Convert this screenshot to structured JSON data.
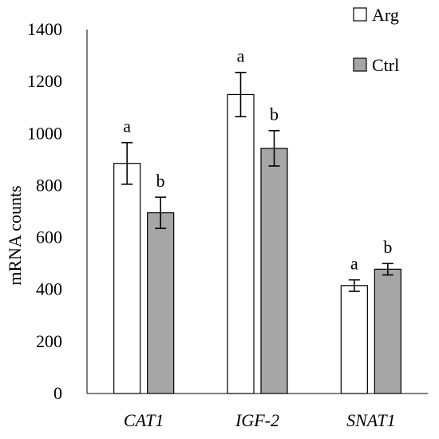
{
  "chart_data": {
    "type": "bar",
    "title": "",
    "xlabel": "",
    "ylabel": "mRNA counts",
    "ylim": [
      0,
      1400
    ],
    "yticks": [
      0,
      200,
      400,
      600,
      800,
      1000,
      1200,
      1400
    ],
    "categories": [
      "CAT1",
      "IGF-2",
      "SNAT1"
    ],
    "series": [
      {
        "name": "Arg",
        "color": "#ffffff",
        "values": [
          885,
          1150,
          415
        ],
        "errors": [
          80,
          85,
          22
        ],
        "labels": [
          "a",
          "a",
          "a"
        ]
      },
      {
        "name": "Ctrl",
        "color": "#a6a6a6",
        "values": [
          695,
          943,
          478
        ],
        "errors": [
          60,
          68,
          22
        ],
        "labels": [
          "b",
          "b",
          "b"
        ]
      }
    ],
    "legend_position": "top-right",
    "grid": false
  }
}
